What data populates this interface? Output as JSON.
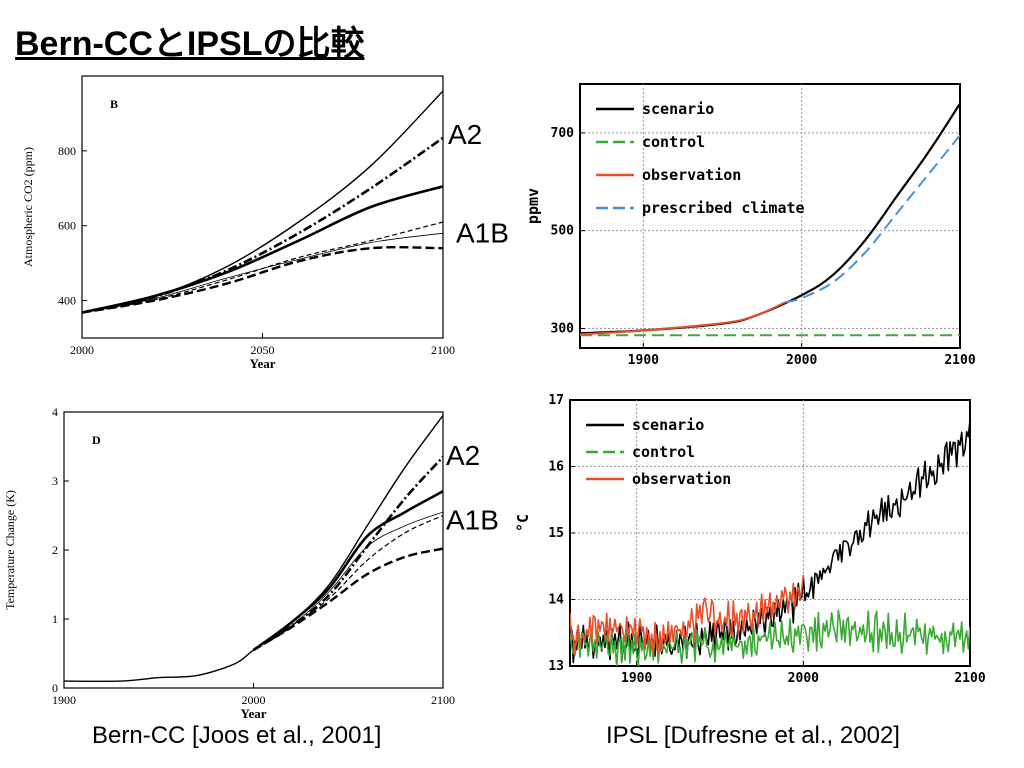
{
  "page": {
    "title": "Bern-CCとIPSLの比較",
    "caption_left": "Bern-CC [Joos et al., 2001]",
    "caption_right": "IPSL [Dufresne et al., 2002]"
  },
  "chart_data": [
    {
      "id": "bern-co2",
      "type": "line",
      "panel_label": "B",
      "xlabel": "Year",
      "ylabel": "Atmospheric CO2 (ppm)",
      "xlim": [
        2000,
        2100
      ],
      "ylim": [
        300,
        1000
      ],
      "xticks": [
        2000,
        2050,
        2100
      ],
      "yticks": [
        400,
        600,
        800
      ],
      "grid": false,
      "annotations": [
        "A2",
        "A1B"
      ],
      "series": [
        {
          "style": "solid-thin",
          "x": [
            2000,
            2020,
            2040,
            2060,
            2080,
            2100
          ],
          "y": [
            368,
            410,
            490,
            610,
            760,
            960
          ]
        },
        {
          "name": "A2",
          "style": "dashdot-thick",
          "x": [
            2000,
            2020,
            2040,
            2060,
            2080,
            2100
          ],
          "y": [
            368,
            410,
            480,
            580,
            700,
            835
          ]
        },
        {
          "name": "A1B",
          "style": "solid-thick",
          "x": [
            2000,
            2020,
            2040,
            2060,
            2080,
            2100
          ],
          "y": [
            368,
            412,
            475,
            560,
            650,
            705
          ]
        },
        {
          "style": "dashed-thin",
          "x": [
            2000,
            2020,
            2040,
            2060,
            2080,
            2100
          ],
          "y": [
            368,
            402,
            455,
            515,
            560,
            610
          ]
        },
        {
          "style": "solid-hairline",
          "x": [
            2000,
            2020,
            2040,
            2060,
            2080,
            2100
          ],
          "y": [
            368,
            405,
            460,
            510,
            555,
            580
          ]
        },
        {
          "style": "dashed-thick",
          "x": [
            2000,
            2020,
            2040,
            2060,
            2080,
            2100
          ],
          "y": [
            368,
            400,
            445,
            505,
            540,
            540
          ]
        }
      ]
    },
    {
      "id": "bern-temp",
      "type": "line",
      "panel_label": "D",
      "xlabel": "Year",
      "ylabel": "Temperature Change (K)",
      "xlim": [
        1900,
        2100
      ],
      "ylim": [
        0,
        4
      ],
      "xticks": [
        1900,
        2000,
        2100
      ],
      "yticks": [
        0,
        1,
        2,
        3,
        4
      ],
      "grid": false,
      "annotations": [
        "A2",
        "A1B"
      ],
      "series": [
        {
          "style": "solid-thin",
          "x": [
            1900,
            1930,
            1950,
            1970,
            1990,
            2000,
            2020,
            2040,
            2060,
            2080,
            2100
          ],
          "y": [
            0.1,
            0.1,
            0.15,
            0.18,
            0.35,
            0.55,
            0.95,
            1.5,
            2.35,
            3.2,
            3.95
          ]
        },
        {
          "name": "A2",
          "style": "dashdot-thick",
          "x": [
            2000,
            2020,
            2040,
            2060,
            2080,
            2100
          ],
          "y": [
            0.55,
            0.9,
            1.35,
            2.05,
            2.75,
            3.35
          ]
        },
        {
          "name": "A1B",
          "style": "solid-thick",
          "x": [
            2000,
            2020,
            2040,
            2060,
            2080,
            2100
          ],
          "y": [
            0.55,
            0.95,
            1.45,
            2.2,
            2.55,
            2.85
          ]
        },
        {
          "style": "dashed-thin",
          "x": [
            2000,
            2020,
            2040,
            2060,
            2080,
            2100
          ],
          "y": [
            0.55,
            0.9,
            1.3,
            1.85,
            2.25,
            2.5
          ]
        },
        {
          "style": "solid-hairline",
          "x": [
            2000,
            2020,
            2040,
            2060,
            2080,
            2100
          ],
          "y": [
            0.55,
            0.9,
            1.4,
            2.05,
            2.35,
            2.55
          ]
        },
        {
          "style": "dashed-thick",
          "x": [
            2000,
            2020,
            2040,
            2060,
            2080,
            2100
          ],
          "y": [
            0.55,
            0.88,
            1.25,
            1.65,
            1.9,
            2.02
          ]
        }
      ]
    },
    {
      "id": "ipsl-co2",
      "type": "line",
      "ylabel": "ppmv",
      "xlim": [
        1860,
        2100
      ],
      "ylim": [
        260,
        800
      ],
      "xticks": [
        1900,
        2000,
        2100
      ],
      "yticks": [
        300,
        500,
        700
      ],
      "grid": true,
      "legend": "top-left",
      "series": [
        {
          "name": "scenario",
          "color": "#000000",
          "style": "solid",
          "x": [
            1860,
            1900,
            1950,
            1970,
            2000,
            2020,
            2040,
            2060,
            2080,
            2100
          ],
          "y": [
            290,
            296,
            310,
            325,
            368,
            410,
            480,
            570,
            660,
            760
          ]
        },
        {
          "name": "control",
          "color": "#3aaa35",
          "style": "dashed",
          "x": [
            1860,
            1900,
            1950,
            2000,
            2050,
            2100
          ],
          "y": [
            286,
            286,
            286,
            286,
            286,
            286
          ]
        },
        {
          "name": "observation",
          "color": "#e8502a",
          "style": "solid",
          "x": [
            1860,
            1900,
            1950,
            1970,
            1990
          ],
          "y": [
            288,
            296,
            311,
            325,
            354
          ]
        },
        {
          "name": "prescribed climate",
          "color": "#4a90d9",
          "style": "dashed",
          "x": [
            1990,
            2000,
            2020,
            2040,
            2060,
            2080,
            2100
          ],
          "y": [
            354,
            362,
            395,
            455,
            535,
            615,
            695
          ]
        }
      ]
    },
    {
      "id": "ipsl-temp",
      "type": "line",
      "ylabel": "°C",
      "xlim": [
        1860,
        2100
      ],
      "ylim": [
        13,
        17
      ],
      "xticks": [
        1900,
        2000,
        2100
      ],
      "yticks": [
        13,
        14,
        15,
        16,
        17
      ],
      "grid": true,
      "legend": "top-left",
      "series": [
        {
          "name": "scenario",
          "color": "#000000",
          "style": "solid",
          "x": [
            1860,
            1880,
            1900,
            1920,
            1940,
            1960,
            1980,
            2000,
            2020,
            2040,
            2060,
            2080,
            2100
          ],
          "y": [
            13.5,
            13.55,
            13.5,
            13.5,
            13.6,
            13.7,
            13.85,
            14.25,
            14.8,
            15.3,
            15.7,
            16.15,
            16.7
          ]
        },
        {
          "name": "control",
          "color": "#3aaa35",
          "style": "solid",
          "x": [
            1860,
            1880,
            1900,
            1920,
            1940,
            1960,
            1980,
            2000,
            2020,
            2040,
            2060,
            2080,
            2100
          ],
          "y": [
            13.5,
            13.45,
            13.4,
            13.45,
            13.5,
            13.5,
            13.55,
            13.65,
            13.75,
            13.7,
            13.65,
            13.6,
            13.6
          ]
        },
        {
          "name": "observation",
          "color": "#e8502a",
          "style": "solid",
          "x": [
            1860,
            1880,
            1900,
            1920,
            1940,
            1960,
            1980,
            2000
          ],
          "y": [
            13.65,
            13.75,
            13.7,
            13.55,
            13.95,
            13.85,
            14.1,
            14.35
          ]
        }
      ]
    }
  ]
}
